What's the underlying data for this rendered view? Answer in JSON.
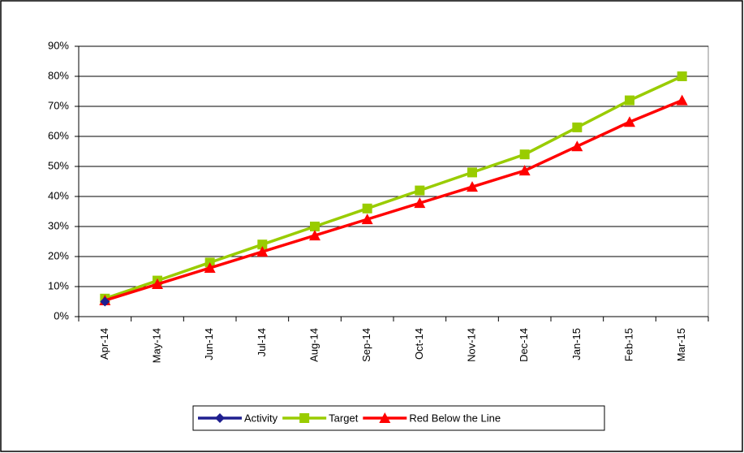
{
  "chart_data": {
    "type": "line",
    "categories": [
      "Apr-14",
      "May-14",
      "Jun-14",
      "Jul-14",
      "Aug-14",
      "Sep-14",
      "Oct-14",
      "Nov-14",
      "Dec-14",
      "Jan-15",
      "Feb-15",
      "Mar-15"
    ],
    "series": [
      {
        "name": "Activity",
        "color": "#1f1f8f",
        "marker": "diamond",
        "values": [
          5,
          null,
          null,
          null,
          null,
          null,
          null,
          null,
          null,
          null,
          null,
          null
        ]
      },
      {
        "name": "Target",
        "color": "#99cc00",
        "marker": "square",
        "values": [
          6,
          12,
          18,
          24,
          30,
          36,
          42,
          48,
          54,
          63,
          72,
          80
        ]
      },
      {
        "name": "Red Below the Line",
        "color": "#ff0000",
        "marker": "triangle",
        "values": [
          5.4,
          10.8,
          16.2,
          21.6,
          27,
          32.4,
          37.8,
          43.2,
          48.6,
          56.7,
          64.8,
          72
        ]
      }
    ],
    "ylim": [
      0,
      90
    ],
    "yticks": [
      {
        "value": 0,
        "label": "0%"
      },
      {
        "value": 10,
        "label": "10%"
      },
      {
        "value": 20,
        "label": "20%"
      },
      {
        "value": 30,
        "label": "30%"
      },
      {
        "value": 40,
        "label": "40%"
      },
      {
        "value": 50,
        "label": "50%"
      },
      {
        "value": 60,
        "label": "60%"
      },
      {
        "value": 70,
        "label": "70%"
      },
      {
        "value": 80,
        "label": "80%"
      },
      {
        "value": 90,
        "label": "90%"
      }
    ],
    "grid": true,
    "legend": "bottom"
  }
}
